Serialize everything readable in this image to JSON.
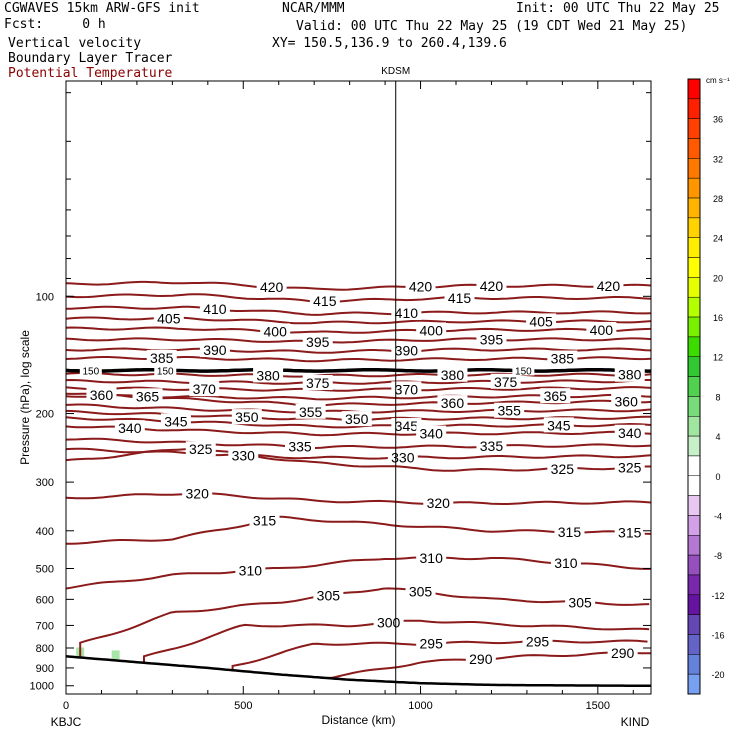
{
  "header": {
    "model": "CGWAVES 15km ARW-GFS init",
    "forecast": "Fcst:     0 h",
    "org": "NCAR/MMM",
    "init": "Init: 00 UTC Thu 22 May 25",
    "valid": "Valid: 00 UTC Thu 22 May 25 (19 CDT Wed 21 May 25)",
    "xy": "XY= 150.5,136.9 to 260.4,139.6",
    "fields": [
      "Vertical velocity",
      "Boundary Layer Tracer",
      "Potential Temperature"
    ]
  },
  "colors": {
    "theta": "#8b1a1a",
    "terrain": "#000000",
    "tracer": "#a8e6a8"
  },
  "chart_data": {
    "type": "cross-section",
    "station_marker": "KDSM",
    "station_marker_km": 930,
    "xlabel": "Distance (km)",
    "ylabel": "Pressure (hPa), log scale",
    "xlim": [
      0,
      1650
    ],
    "ylim": [
      1050,
      28
    ],
    "y_scale": "log",
    "x_ticks": [
      0,
      500,
      1000,
      1500
    ],
    "x_tick_labels": [
      "0",
      "500",
      "1000",
      "1500"
    ],
    "y_ticks": [
      100,
      200,
      300,
      400,
      500,
      600,
      700,
      800,
      900,
      1000
    ],
    "y_tick_labels": [
      "100",
      "200",
      "300",
      "400",
      "500",
      "600",
      "700",
      "800",
      "900",
      "1000"
    ],
    "endpoints": {
      "left": "KBJC",
      "right": "KIND"
    },
    "tropopause_label": "150",
    "tropopause_label_x_km": [
      70,
      280,
      1290
    ],
    "tropopause_pressure": 155,
    "surface_pressure": {
      "x": [
        0,
        200,
        400,
        600,
        800,
        1000,
        1200,
        1400,
        1650
      ],
      "p": [
        840,
        870,
        900,
        935,
        965,
        985,
        995,
        998,
        1000
      ]
    },
    "theta_levels": [
      {
        "value": 420,
        "x": [
          0,
          350,
          700,
          1100,
          1650
        ],
        "p": [
          93,
          92,
          96,
          94,
          94
        ],
        "labels_km": [
          580,
          1000,
          1200,
          1530
        ]
      },
      {
        "value": 415,
        "x": [
          0,
          350,
          700,
          1100,
          1650
        ],
        "p": [
          100,
          99,
          103,
          101,
          101
        ],
        "labels_km": [
          730,
          1110
        ]
      },
      {
        "value": 410,
        "x": [
          0,
          350,
          700,
          1100,
          1650
        ],
        "p": [
          107,
          107,
          111,
          110,
          110
        ],
        "labels_km": [
          420,
          960
        ]
      },
      {
        "value": 405,
        "x": [
          0,
          350,
          700,
          1100,
          1650
        ],
        "p": [
          114,
          114,
          117,
          116,
          116
        ],
        "labels_km": [
          290,
          1340
        ]
      },
      {
        "value": 400,
        "x": [
          0,
          350,
          700,
          1100,
          1650
        ],
        "p": [
          121,
          121,
          124,
          122,
          122
        ],
        "labels_km": [
          590,
          1030,
          1510
        ]
      },
      {
        "value": 395,
        "x": [
          0,
          350,
          700,
          1100,
          1650
        ],
        "p": [
          129,
          129,
          131,
          129,
          129
        ],
        "labels_km": [
          710,
          1200
        ]
      },
      {
        "value": 390,
        "x": [
          0,
          350,
          700,
          1100,
          1650
        ],
        "p": [
          137,
          137,
          139,
          137,
          137
        ],
        "labels_km": [
          420,
          960
        ]
      },
      {
        "value": 385,
        "x": [
          0,
          350,
          700,
          1100,
          1650
        ],
        "p": [
          144,
          144,
          146,
          145,
          144
        ],
        "labels_km": [
          270,
          1400
        ]
      },
      {
        "value": 380,
        "x": [
          0,
          350,
          700,
          1100,
          1650
        ],
        "p": [
          158,
          159,
          160,
          159,
          159
        ],
        "labels_km": [
          570,
          1090,
          1590
        ]
      },
      {
        "value": 375,
        "x": [
          0,
          350,
          700,
          1100,
          1650
        ],
        "p": [
          165,
          166,
          167,
          166,
          165
        ],
        "labels_km": [
          710,
          1240
        ]
      },
      {
        "value": 370,
        "x": [
          0,
          350,
          700,
          1100,
          1650
        ],
        "p": [
          172,
          173,
          174,
          173,
          172
        ],
        "labels_km": [
          390,
          960
        ]
      },
      {
        "value": 365,
        "x": [
          0,
          350,
          700,
          1100,
          1650
        ],
        "p": [
          180,
          181,
          183,
          181,
          180
        ],
        "labels_km": [
          230,
          1380
        ]
      },
      {
        "value": 360,
        "x": [
          0,
          350,
          700,
          1100,
          1650
        ],
        "p": [
          177,
          184,
          190,
          188,
          186
        ],
        "labels_km": [
          100,
          1090,
          1580
        ]
      },
      {
        "value": 355,
        "x": [
          0,
          350,
          700,
          1100,
          1650
        ],
        "p": [
          190,
          195,
          198,
          197,
          196
        ],
        "labels_km": [
          690,
          1250
        ]
      },
      {
        "value": 350,
        "x": [
          0,
          350,
          700,
          1100,
          1650
        ],
        "p": [
          198,
          202,
          207,
          206,
          205
        ],
        "labels_km": [
          510,
          820
        ]
      },
      {
        "value": 345,
        "x": [
          0,
          350,
          700,
          1100,
          1650
        ],
        "p": [
          205,
          210,
          216,
          215,
          214
        ],
        "labels_km": [
          310,
          960,
          1390
        ]
      },
      {
        "value": 340,
        "x": [
          0,
          350,
          700,
          1100,
          1650
        ],
        "p": [
          215,
          221,
          226,
          225,
          224
        ],
        "labels_km": [
          180,
          1030,
          1590
        ]
      },
      {
        "value": 335,
        "x": [
          0,
          350,
          700,
          1100,
          1650
        ],
        "p": [
          232,
          238,
          244,
          243,
          241
        ],
        "labels_km": [
          660,
          1200
        ]
      },
      {
        "value": 330,
        "x": [
          0,
          350,
          700,
          1100,
          1650
        ],
        "p": [
          247,
          253,
          260,
          259,
          257
        ],
        "labels_km": [
          500,
          950
        ]
      },
      {
        "value": 325,
        "x": [
          0,
          350,
          700,
          1100,
          1650
        ],
        "p": [
          265,
          245,
          268,
          280,
          275
        ],
        "labels_km": [
          380,
          1400,
          1590
        ]
      },
      {
        "value": 320,
        "x": [
          0,
          350,
          700,
          1100,
          1650
        ],
        "p": [
          330,
          320,
          335,
          340,
          338
        ],
        "labels_km": [
          370,
          1050
        ]
      },
      {
        "value": 315,
        "x": [
          0,
          300,
          600,
          900,
          1200,
          1650
        ],
        "p": [
          430,
          420,
          370,
          385,
          400,
          405
        ],
        "labels_km": [
          560,
          1420,
          1590
        ]
      },
      {
        "value": 310,
        "x": [
          0,
          300,
          600,
          900,
          1200,
          1650
        ],
        "p": [
          560,
          520,
          500,
          470,
          470,
          500
        ],
        "labels_km": [
          520,
          1030,
          1410
        ]
      },
      {
        "value": 305,
        "x": [
          40,
          300,
          600,
          900,
          1200,
          1650
        ],
        "p": [
          780,
          650,
          610,
          560,
          600,
          620
        ],
        "labels_km": [
          740,
          1000,
          1450
        ]
      },
      {
        "value": 300,
        "x": [
          220,
          500,
          800,
          1000,
          1300,
          1650
        ],
        "p": [
          845,
          700,
          700,
          680,
          700,
          720
        ],
        "labels_km": [
          910
        ]
      },
      {
        "value": 295,
        "x": [
          470,
          700,
          1000,
          1300,
          1650
        ],
        "p": [
          890,
          780,
          780,
          770,
          770
        ],
        "labels_km": [
          1030,
          1330
        ]
      },
      {
        "value": 290,
        "x": [
          720,
          1000,
          1300,
          1650
        ],
        "p": [
          960,
          870,
          840,
          820
        ],
        "labels_km": [
          1170,
          1570
        ]
      }
    ],
    "colorbar": {
      "unit": "cm s⁻¹",
      "labels": [
        "36",
        "32",
        "28",
        "24",
        "20",
        "16",
        "12",
        "8",
        "4",
        "0",
        "-4",
        "-8",
        "-12",
        "-16",
        "-20"
      ],
      "colors": [
        "#ff0000",
        "#ff2000",
        "#ff4000",
        "#ff5a00",
        "#ff7800",
        "#ff9600",
        "#ffb400",
        "#ffd200",
        "#ffee00",
        "#ffff00",
        "#e6ff00",
        "#b4ff00",
        "#78f000",
        "#3cdc00",
        "#32c832",
        "#50d250",
        "#78dc78",
        "#a0e6a0",
        "#c8f0c8",
        "#ffffff",
        "#ffffff",
        "#e8c8f0",
        "#d2a0e6",
        "#b478d2",
        "#9650be",
        "#7828aa",
        "#6414a0",
        "#6446b4",
        "#6464c8",
        "#6482dc",
        "#78a0f0"
      ]
    }
  }
}
